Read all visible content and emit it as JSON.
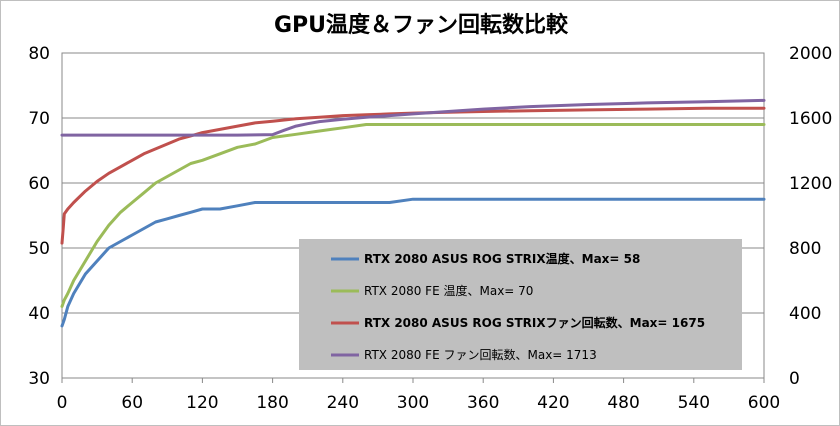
{
  "chart_data": {
    "type": "line",
    "title": "GPU温度＆ファン回転数比較",
    "xlabel": "",
    "ylabel": "",
    "y2label": "",
    "xlim": [
      0,
      600
    ],
    "ylim": [
      30,
      80
    ],
    "y2lim": [
      0,
      2000
    ],
    "x_ticks": [
      "0",
      "60",
      "120",
      "180",
      "240",
      "300",
      "360",
      "420",
      "480",
      "540",
      "600"
    ],
    "y_ticks": [
      "30",
      "40",
      "50",
      "60",
      "70",
      "80"
    ],
    "y2_ticks": [
      "0",
      "400",
      "800",
      "1200",
      "1600",
      "2000"
    ],
    "grid": "horizontal",
    "legend_position": "center-right",
    "series": [
      {
        "name": "RTX 2080 ASUS ROG STRIX温度、Max= 58",
        "axis": "left",
        "color": "#4f81bd",
        "bold": true,
        "x": [
          0,
          2,
          5,
          10,
          20,
          30,
          40,
          50,
          60,
          70,
          80,
          90,
          100,
          110,
          120,
          135,
          150,
          165,
          180,
          200,
          220,
          240,
          260,
          280,
          300,
          330,
          360,
          400,
          450,
          500,
          550,
          600
        ],
        "y": [
          38,
          39,
          41,
          43,
          46,
          48,
          50,
          51,
          52,
          53,
          54,
          54.5,
          55,
          55.5,
          56,
          56,
          56.5,
          57,
          57,
          57,
          57,
          57,
          57,
          57,
          57.5,
          57.5,
          57.5,
          57.5,
          57.5,
          57.5,
          57.5,
          57.5
        ]
      },
      {
        "name": "RTX 2080 FE 温度、Max= 70",
        "axis": "left",
        "color": "#9bbb59",
        "bold": false,
        "x": [
          0,
          2,
          5,
          10,
          20,
          30,
          40,
          50,
          60,
          70,
          80,
          90,
          100,
          110,
          120,
          135,
          150,
          165,
          180,
          200,
          220,
          240,
          260,
          280,
          300,
          330,
          360,
          400,
          450,
          500,
          550,
          600
        ],
        "y": [
          41,
          42,
          43,
          45,
          48,
          51,
          53.5,
          55.5,
          57,
          58.5,
          60,
          61,
          62,
          63,
          63.5,
          64.5,
          65.5,
          66,
          67,
          67.5,
          68,
          68.5,
          69,
          69,
          69,
          69,
          69,
          69,
          69,
          69,
          69,
          69
        ]
      },
      {
        "name": "RTX 2080 ASUS ROG STRIXファン回転数、Max= 1675",
        "axis": "right",
        "color": "#c0504d",
        "bold": true,
        "x": [
          0,
          1,
          2,
          5,
          10,
          20,
          30,
          40,
          50,
          60,
          70,
          80,
          90,
          100,
          110,
          120,
          135,
          150,
          165,
          180,
          200,
          220,
          240,
          260,
          280,
          300,
          330,
          360,
          400,
          450,
          500,
          550,
          600
        ],
        "y": [
          830,
          920,
          1010,
          1040,
          1080,
          1150,
          1210,
          1260,
          1300,
          1340,
          1380,
          1410,
          1440,
          1470,
          1490,
          1510,
          1530,
          1550,
          1570,
          1580,
          1595,
          1605,
          1615,
          1620,
          1625,
          1630,
          1635,
          1640,
          1645,
          1650,
          1655,
          1660,
          1660
        ]
      },
      {
        "name": "RTX 2080 FE ファン回転数、Max= 1713",
        "axis": "right",
        "color": "#8064a2",
        "bold": false,
        "x": [
          0,
          30,
          60,
          90,
          120,
          150,
          165,
          180,
          190,
          200,
          210,
          220,
          240,
          260,
          280,
          300,
          330,
          360,
          400,
          450,
          500,
          550,
          600
        ],
        "y": [
          1495,
          1495,
          1495,
          1495,
          1495,
          1495,
          1496,
          1498,
          1525,
          1550,
          1565,
          1578,
          1592,
          1605,
          1615,
          1625,
          1640,
          1655,
          1670,
          1683,
          1693,
          1700,
          1708
        ]
      }
    ]
  }
}
